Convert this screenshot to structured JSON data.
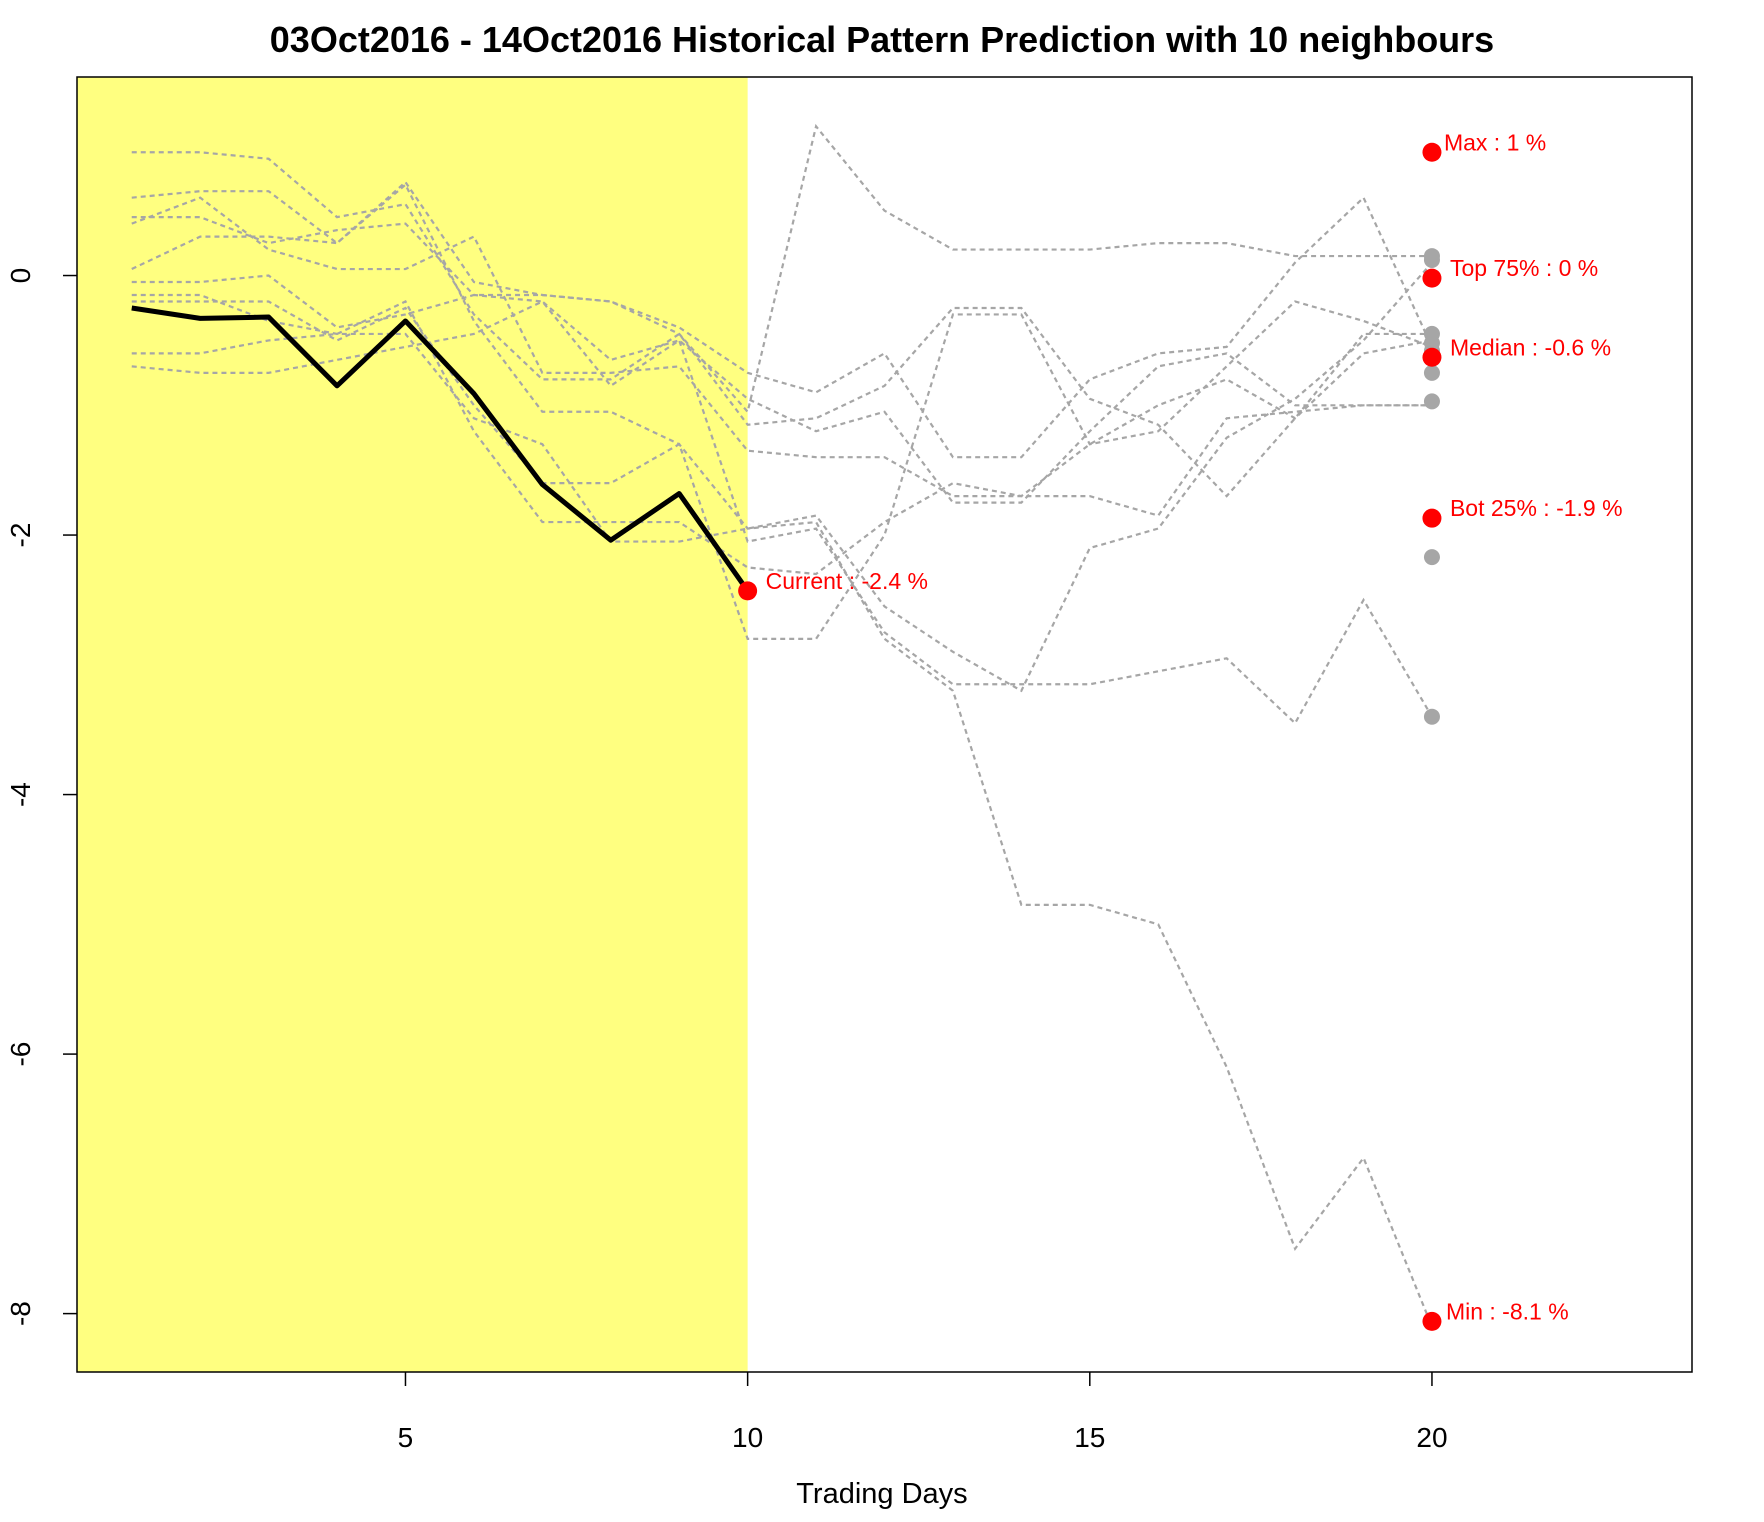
{
  "chart_data": {
    "type": "line",
    "title": "03Oct2016 - 14Oct2016 Historical Pattern Prediction with 10 neighbours",
    "xlabel": "Trading Days",
    "ylabel": "",
    "xlim": [
      0.2,
      23.8
    ],
    "ylim": [
      -8.45,
      1.53
    ],
    "x_ticks": [
      5,
      10,
      15,
      20
    ],
    "y_ticks": [
      -8,
      -6,
      -4,
      -2,
      0
    ],
    "highlight_region": {
      "x_from": 0.2,
      "x_to": 10,
      "color": "#ffff80"
    },
    "colors": {
      "current": "#000000",
      "neighbours": "#a6a6a6",
      "annotation": "#ff0000",
      "endpoint": "#a6a6a6"
    },
    "grid": false,
    "legend": "none",
    "current": {
      "name": "Current",
      "x": [
        1,
        2,
        3,
        4,
        5,
        6,
        7,
        8,
        9,
        10
      ],
      "y": [
        -0.25,
        -0.33,
        -0.32,
        -0.85,
        -0.35,
        -0.91,
        -1.61,
        -2.04,
        -1.68,
        -2.43
      ]
    },
    "neighbours": [
      {
        "x": [
          1,
          2,
          3,
          4,
          5,
          6,
          7,
          8,
          9,
          10,
          11,
          12,
          13,
          14,
          15,
          16,
          17,
          18,
          19,
          20
        ],
        "y": [
          0.95,
          0.95,
          0.9,
          0.45,
          0.55,
          -0.3,
          -0.8,
          -0.8,
          -0.45,
          -1.15,
          -1.1,
          -0.85,
          -0.25,
          -0.25,
          -0.95,
          -1.15,
          -1.7,
          -1.1,
          -0.45,
          -0.45
        ]
      },
      {
        "x": [
          1,
          2,
          3,
          4,
          5,
          6,
          7,
          8,
          9,
          10,
          11,
          12,
          13,
          14,
          15,
          16,
          17,
          18,
          19,
          20
        ],
        "y": [
          0.6,
          0.65,
          0.65,
          0.25,
          0.72,
          -0.05,
          -0.15,
          -0.2,
          -0.4,
          -0.75,
          -0.9,
          -0.6,
          -1.4,
          -1.4,
          -0.8,
          -0.6,
          -0.55,
          0.1,
          0.6,
          -0.55
        ]
      },
      {
        "x": [
          1,
          2,
          3,
          4,
          5,
          6,
          7,
          8,
          9,
          10,
          11,
          12,
          13,
          14,
          15,
          16,
          17,
          18,
          19,
          20
        ],
        "y": [
          0.45,
          0.45,
          0.25,
          0.35,
          0.4,
          -0.15,
          -0.2,
          -0.85,
          -0.5,
          -2.05,
          -1.95,
          -2.75,
          -3.15,
          -3.15,
          -3.15,
          -3.05,
          -2.95,
          -3.45,
          -2.5,
          -3.4
        ]
      },
      {
        "x": [
          1,
          2,
          3,
          4,
          5,
          6,
          7,
          8,
          9,
          10,
          11,
          12,
          13,
          14,
          15,
          16,
          17,
          18,
          19,
          20
        ],
        "y": [
          0.05,
          0.3,
          0.3,
          0.25,
          0.7,
          -0.35,
          -1.05,
          -1.05,
          -1.3,
          -1.95,
          -1.9,
          -2.8,
          -3.2,
          -4.85,
          -4.85,
          -5.0,
          -6.1,
          -7.5,
          -6.8,
          -8.1
        ]
      },
      {
        "x": [
          1,
          2,
          3,
          4,
          5,
          6,
          7,
          8,
          9,
          10,
          11,
          12,
          13,
          14,
          15,
          16,
          17,
          18,
          19,
          20
        ],
        "y": [
          0.4,
          0.6,
          0.2,
          0.05,
          0.05,
          0.3,
          -0.75,
          -0.75,
          -0.7,
          -1.35,
          -1.4,
          -1.4,
          -1.7,
          -1.7,
          -1.7,
          -1.85,
          -1.1,
          -1.05,
          -1.0,
          -1.0
        ]
      },
      {
        "x": [
          1,
          2,
          3,
          4,
          5,
          6,
          7,
          8,
          9,
          10,
          11,
          12,
          13,
          14,
          15,
          16,
          17,
          18,
          19,
          20
        ],
        "y": [
          -0.2,
          -0.2,
          -0.2,
          -0.5,
          -0.25,
          -1.0,
          -1.6,
          -1.6,
          -1.3,
          -2.8,
          -2.8,
          -2.0,
          -0.3,
          -0.3,
          -1.3,
          -1.2,
          -0.7,
          -0.2,
          -0.35,
          -0.55
        ]
      },
      {
        "x": [
          1,
          2,
          3,
          4,
          5,
          6,
          7,
          8,
          9,
          10,
          11,
          12,
          13,
          14,
          15,
          16,
          17,
          18,
          19,
          20
        ],
        "y": [
          -0.6,
          -0.6,
          -0.5,
          -0.45,
          -0.2,
          -1.2,
          -1.9,
          -1.9,
          -1.9,
          -2.25,
          -2.3,
          -1.9,
          -1.6,
          -1.7,
          -1.3,
          -1.0,
          -0.8,
          -1.1,
          -0.6,
          -0.5
        ]
      },
      {
        "x": [
          1,
          2,
          3,
          4,
          5,
          6,
          7,
          8,
          9,
          10,
          11,
          12,
          13,
          14,
          15,
          16,
          17,
          18,
          19,
          20
        ],
        "y": [
          -0.7,
          -0.75,
          -0.75,
          -0.65,
          -0.55,
          -0.45,
          -0.2,
          -0.65,
          -0.5,
          -0.95,
          -1.2,
          -1.05,
          -1.75,
          -1.75,
          -1.2,
          -0.7,
          -0.6,
          -1.0,
          -1.0,
          -1.0
        ]
      },
      {
        "x": [
          1,
          2,
          3,
          4,
          5,
          6,
          7,
          8,
          9,
          10,
          11,
          12,
          13,
          14,
          15,
          16,
          17,
          18,
          19,
          20
        ],
        "y": [
          -0.05,
          -0.05,
          0.0,
          -0.4,
          -0.3,
          -0.15,
          -0.15,
          -0.2,
          -0.45,
          -1.05,
          1.15,
          0.5,
          0.2,
          0.2,
          0.2,
          0.25,
          0.25,
          0.15,
          0.15,
          0.15
        ]
      },
      {
        "x": [
          1,
          2,
          3,
          4,
          5,
          6,
          7,
          8,
          9,
          10,
          11,
          12,
          13,
          14,
          15,
          16,
          17,
          18,
          19,
          20
        ],
        "y": [
          -0.15,
          -0.15,
          -0.35,
          -0.45,
          -0.45,
          -1.1,
          -1.3,
          -2.05,
          -2.05,
          -1.95,
          -1.85,
          -2.55,
          -2.9,
          -3.2,
          -2.1,
          -1.95,
          -1.25,
          -0.95,
          -0.5,
          0.1
        ]
      }
    ],
    "endpoints": {
      "x": 20,
      "y": [
        0.15,
        0.12,
        -0.45,
        -0.52,
        -0.58,
        -0.75,
        -0.97,
        -2.17,
        -3.4
      ]
    },
    "annotations": [
      {
        "label": "Max : 1 %",
        "x": 20,
        "y": 0.95
      },
      {
        "label": "Top 75% : 0 %",
        "x": 20,
        "y": -0.02
      },
      {
        "label": "Median : -0.6 %",
        "x": 20,
        "y": -0.63
      },
      {
        "label": "Bot 25% : -1.9 %",
        "x": 20,
        "y": -1.87
      },
      {
        "label": "Min : -8.1 %",
        "x": 20,
        "y": -8.06
      },
      {
        "label": "Current : -2.4 %",
        "x": 10,
        "y": -2.43
      }
    ]
  }
}
